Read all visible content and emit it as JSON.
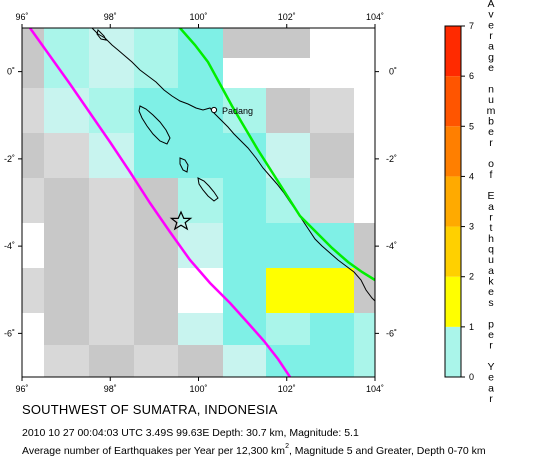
{
  "map": {
    "lon_ticks": [
      "96˚",
      "98˚",
      "100˚",
      "102˚",
      "104˚"
    ],
    "lat_ticks": [
      "0˚",
      "-2˚",
      "-4˚",
      "-6˚"
    ],
    "lon_range": [
      96,
      104
    ],
    "lat_range": [
      -7,
      1
    ],
    "city": {
      "name": "Padang",
      "lon": 100.35,
      "lat": -0.95
    },
    "epicenter": {
      "lon": 99.63,
      "lat": -3.49,
      "symbol": "star-icon"
    },
    "colors": {
      "land": "#ffffff",
      "coast": "#000000",
      "trench": "#ff00ff",
      "fault": "#00ee00",
      "cell_low": "#aaf5ea",
      "cell_low2": "#c8f4ef",
      "cell_mid": "#7ff0e6",
      "cell_grey": "#c8c8c8",
      "cell_grey2": "#d8d8d8",
      "cell_high": "#ffff00"
    }
  },
  "colorbar": {
    "title": "Average number of Earthquakes per Year",
    "ticks": [
      "0",
      "1",
      "2",
      "3",
      "4",
      "5",
      "6",
      "7"
    ],
    "range": [
      0,
      7
    ],
    "stops": [
      "#aaf5ea",
      "#ffff00",
      "#ffd000",
      "#ffaa00",
      "#ff7f00",
      "#ff5500",
      "#ff2a00",
      "#cc0000"
    ]
  },
  "caption": {
    "title": "SOUTHWEST OF SUMATRA, INDONESIA",
    "details": "2010 10 27 00:04:03 UTC 3.49S 99.63E Depth: 30.7 km, Magnitude: 5.1",
    "note_before": "Average number of Earthquakes per Year per 12,300 km",
    "note_sup": "2",
    "note_after": ", Magnitude 5 and Greater, Depth 0-70 km"
  }
}
